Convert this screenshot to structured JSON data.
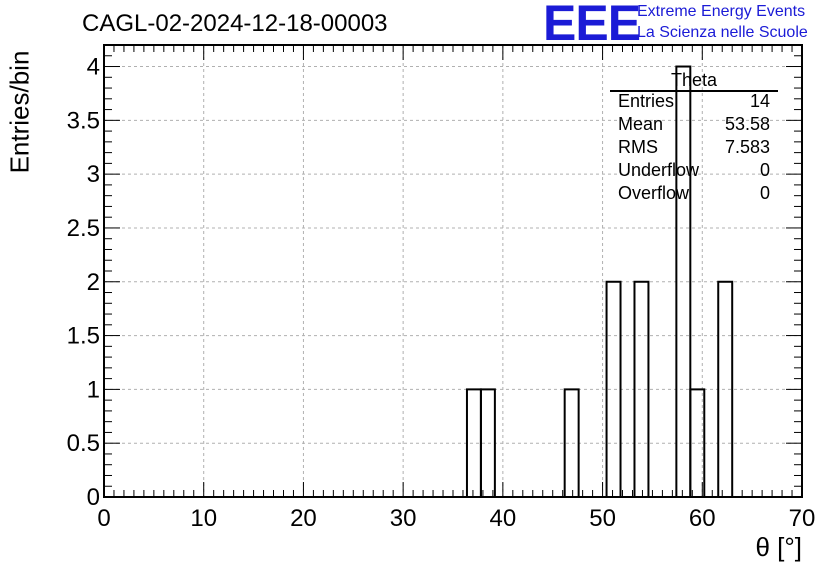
{
  "title": "CAGL-02-2024-12-18-00003",
  "logo": {
    "mark": "EEE",
    "line1": "Extreme Energy Events",
    "line2": "La Scienza nelle Scuole",
    "color": "#1b1bd6"
  },
  "stats_box": {
    "name": "Theta",
    "rows": [
      {
        "label": "Entries",
        "value": "14"
      },
      {
        "label": "Mean",
        "value": "53.58"
      },
      {
        "label": "RMS",
        "value": "7.583"
      },
      {
        "label": "Underflow",
        "value": "0"
      },
      {
        "label": "Overflow",
        "value": "0"
      }
    ]
  },
  "chart_data": {
    "type": "bar",
    "histogram": true,
    "title": "CAGL-02-2024-12-18-00003",
    "xlabel": "θ [°]",
    "ylabel": "Entries/bin",
    "xlim": [
      0,
      70
    ],
    "ylim": [
      0,
      4.2
    ],
    "x_ticks": [
      "0",
      "10",
      "20",
      "30",
      "40",
      "50",
      "60",
      "70"
    ],
    "y_ticks": [
      "0",
      "0.5",
      "1",
      "1.5",
      "2",
      "2.5",
      "3",
      "3.5",
      "4"
    ],
    "grid": true,
    "bin_width": 1.4,
    "bins": [
      {
        "x0": 36.4,
        "x1": 37.8,
        "value": 1
      },
      {
        "x0": 37.8,
        "x1": 39.2,
        "value": 1
      },
      {
        "x0": 46.2,
        "x1": 47.6,
        "value": 1
      },
      {
        "x0": 50.4,
        "x1": 51.8,
        "value": 2
      },
      {
        "x0": 53.2,
        "x1": 54.6,
        "value": 2
      },
      {
        "x0": 57.4,
        "x1": 58.8,
        "value": 4
      },
      {
        "x0": 58.8,
        "x1": 60.2,
        "value": 1
      },
      {
        "x0": 61.6,
        "x1": 63.0,
        "value": 2
      }
    ],
    "line_color": "#000000",
    "grid_color": "#b0b0b0"
  }
}
